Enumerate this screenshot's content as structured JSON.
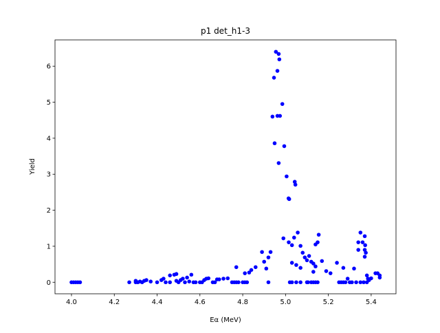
{
  "chart_data": {
    "type": "scatter",
    "title": "p1 det_h1-3",
    "x_label": "Eα (MeV)",
    "y_label": "Yield",
    "xlim": [
      3.923,
      5.516
    ],
    "ylim": [
      -0.32,
      6.73
    ],
    "xticks": [
      {
        "value": 4,
        "label": "4.0"
      },
      4.2,
      4.4,
      4.6,
      4.8,
      {
        "value": 5,
        "label": "5.0"
      },
      5.2,
      5.4
    ],
    "yticks": [
      0,
      1,
      2,
      3,
      4,
      5,
      6
    ],
    "series": [
      {
        "color": "#0000ff",
        "x": [
          4.0,
          4.01,
          4.02,
          4.03,
          4.04,
          4.27,
          4.3,
          4.3,
          4.31,
          4.32,
          4.33,
          4.34,
          4.35,
          4.37,
          4.4,
          4.42,
          4.43,
          4.44,
          4.46,
          4.46,
          4.48,
          4.49,
          4.49,
          4.5,
          4.51,
          4.52,
          4.53,
          4.54,
          4.55,
          4.56,
          4.57,
          4.58,
          4.6,
          4.61,
          4.62,
          4.63,
          4.64,
          4.66,
          4.67,
          4.68,
          4.69,
          4.71,
          4.73,
          4.75,
          4.76,
          4.77,
          4.77,
          4.78,
          4.8,
          4.81,
          4.81,
          4.82,
          4.83,
          4.84,
          4.86,
          4.89,
          4.9,
          4.91,
          4.92,
          4.92,
          4.93,
          4.955,
          4.968,
          4.971,
          4.946,
          4.962,
          4.985,
          4.962,
          4.974,
          4.939,
          4.949,
          4.994,
          4.968,
          5.005,
          5.043,
          5.046,
          5.014,
          5.017,
          4.99,
          5.015,
          5.03,
          5.04,
          5.057,
          5.07,
          5.08,
          5.05,
          5.07,
          5.03,
          5.02,
          5.03,
          5.05,
          5.07,
          5.09,
          5.1,
          5.11,
          5.1,
          5.105,
          5.12,
          5.13,
          5.14,
          5.15,
          5.12,
          5.13,
          5.14,
          5.13,
          5.15,
          5.155,
          5.14,
          5.17,
          5.19,
          5.21,
          5.24,
          5.25,
          5.26,
          5.27,
          5.28,
          5.27,
          5.29,
          5.3,
          5.31,
          5.33,
          5.32,
          5.34,
          5.34,
          5.35,
          5.36,
          5.35,
          5.365,
          5.37,
          5.37,
          5.37,
          5.372,
          5.375,
          5.38,
          5.38,
          5.385,
          5.39,
          5.4,
          5.42,
          5.43,
          5.44,
          5.44
        ],
        "values": [
          0,
          0,
          0,
          0,
          0,
          0,
          0,
          0.04,
          0,
          0.02,
          0,
          0.04,
          0.06,
          0.02,
          0,
          0.06,
          0.1,
          0,
          0,
          0.19,
          0.21,
          0.23,
          0.04,
          0,
          0.06,
          0.1,
          0,
          0.13,
          0.02,
          0.21,
          0,
          0,
          0,
          0,
          0.06,
          0.1,
          0.11,
          0,
          0,
          0.08,
          0.08,
          0.1,
          0.11,
          0,
          0,
          0.42,
          0,
          0,
          0,
          0,
          0.25,
          0,
          0.27,
          0.34,
          0.42,
          0.84,
          0.57,
          0.38,
          0,
          0.69,
          0.84,
          6.4,
          6.34,
          6.19,
          5.68,
          5.87,
          4.95,
          4.62,
          4.62,
          4.6,
          3.86,
          3.78,
          3.31,
          2.94,
          2.79,
          2.71,
          2.33,
          2.31,
          1.22,
          1.11,
          1.03,
          1.24,
          1.38,
          1.01,
          0.82,
          0.48,
          0.4,
          0.54,
          0,
          0,
          0,
          0,
          0.69,
          0.61,
          0.73,
          0,
          0,
          0,
          0,
          0,
          0,
          0.57,
          0.52,
          0.44,
          0.29,
          1.11,
          1.32,
          1.05,
          0.59,
          0.31,
          0.25,
          0.54,
          0,
          0,
          0,
          0,
          0.4,
          0.1,
          0,
          0,
          0,
          0.38,
          0.9,
          1.11,
          1.38,
          1.11,
          0,
          0,
          0.9,
          0.71,
          1.28,
          1.03,
          0.82,
          0,
          0.19,
          0.1,
          0.06,
          0.11,
          0.25,
          0.25,
          0.19,
          0.13
        ]
      }
    ]
  }
}
